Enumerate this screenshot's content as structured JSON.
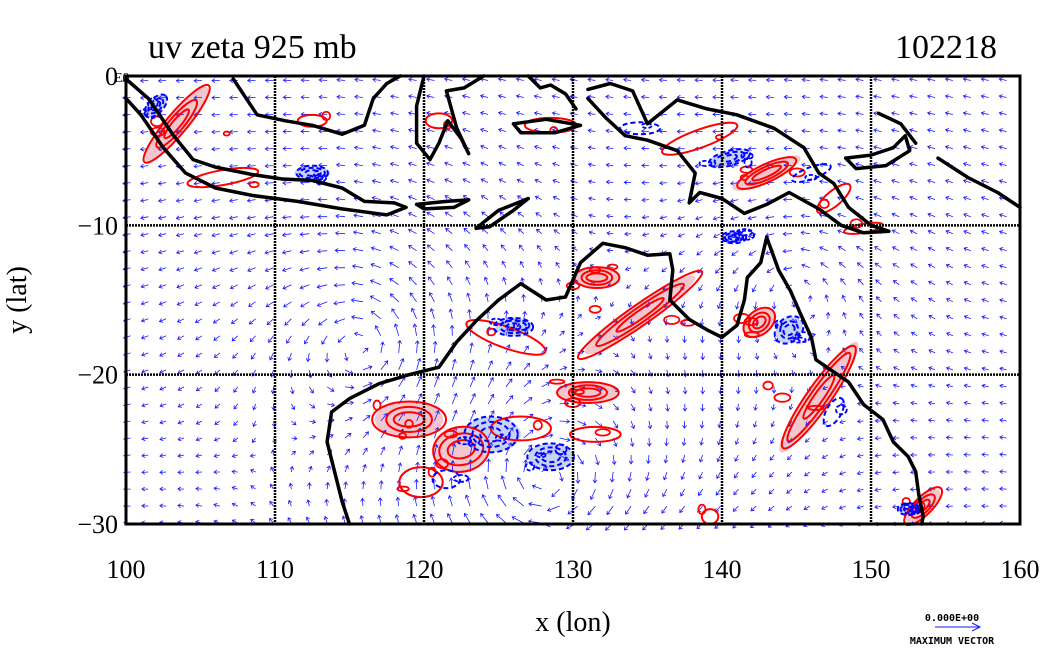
{
  "chart_data": {
    "type": "vector-contour-map",
    "title_left": "uv zeta 925 mb",
    "title_right": "102218",
    "xlabel": "x (lon)",
    "ylabel": "y (lat)",
    "xlim": [
      100,
      160
    ],
    "ylim": [
      -30,
      0
    ],
    "x_ticks": [
      100,
      110,
      120,
      130,
      140,
      150,
      160
    ],
    "y_ticks": [
      0,
      -10,
      -20,
      -30
    ],
    "x_tick_labels": [
      "100",
      "110",
      "120",
      "130",
      "140",
      "150",
      "160"
    ],
    "y_tick_labels": [
      "0",
      "−10",
      "−20",
      "−30"
    ],
    "corner_label": "E0",
    "grid": true,
    "vector_reference": {
      "value_label": "0.000E+00",
      "caption": "MAXIMUM VECTOR"
    },
    "colors": {
      "vectors": "#1a1aff",
      "positive_vorticity": "#ff0000",
      "positive_fill": "#f2c6cf",
      "negative_vorticity": "#0000ff",
      "negative_fill": "#c7d3f5",
      "coastline": "#000000",
      "grid": "#000000"
    },
    "coastlines": [
      {
        "name": "sumatra-java",
        "points": [
          [
            100.0,
            -0.2
          ],
          [
            101.5,
            -1.5
          ],
          [
            103.2,
            -4.0
          ],
          [
            104.5,
            -5.6
          ],
          [
            106.0,
            -6.1
          ],
          [
            108.5,
            -6.6
          ],
          [
            110.5,
            -6.9
          ],
          [
            112.5,
            -7.0
          ],
          [
            114.5,
            -7.5
          ],
          [
            116.0,
            -8.4
          ],
          [
            118.0,
            -8.5
          ],
          [
            118.8,
            -8.8
          ],
          [
            117.5,
            -9.3
          ],
          [
            114.5,
            -8.9
          ],
          [
            111.5,
            -8.4
          ],
          [
            108.5,
            -8.0
          ],
          [
            106.0,
            -7.5
          ],
          [
            104.0,
            -6.5
          ],
          [
            102.5,
            -4.8
          ],
          [
            101.0,
            -2.6
          ],
          [
            100.0,
            -1.5
          ]
        ]
      },
      {
        "name": "borneo",
        "points": [
          [
            107.2,
            -0.2
          ],
          [
            108.8,
            -2.6
          ],
          [
            110.7,
            -3.0
          ],
          [
            112.5,
            -3.3
          ],
          [
            114.5,
            -3.9
          ],
          [
            116.0,
            -3.3
          ],
          [
            116.6,
            -1.5
          ],
          [
            117.5,
            -0.5
          ],
          [
            118.4,
            0.0
          ]
        ]
      },
      {
        "name": "sulawesi",
        "points": [
          [
            120.0,
            0.0
          ],
          [
            119.5,
            -2.0
          ],
          [
            119.5,
            -4.5
          ],
          [
            120.4,
            -5.6
          ],
          [
            121.0,
            -4.5
          ],
          [
            121.6,
            -3.0
          ],
          [
            122.5,
            -4.2
          ],
          [
            123.0,
            -5.2
          ],
          [
            122.2,
            -3.5
          ],
          [
            121.5,
            -1.0
          ],
          [
            122.7,
            -0.8
          ],
          [
            124.0,
            0.0
          ]
        ]
      },
      {
        "name": "halmahera",
        "points": [
          [
            127.0,
            0.0
          ],
          [
            127.8,
            -0.8
          ],
          [
            128.5,
            -0.6
          ],
          [
            129.5,
            -1.2
          ],
          [
            130.2,
            -2.2
          ]
        ]
      },
      {
        "name": "seram",
        "points": [
          [
            126.0,
            -3.2
          ],
          [
            128.2,
            -2.9
          ],
          [
            130.5,
            -3.3
          ],
          [
            128.8,
            -3.8
          ],
          [
            126.5,
            -3.8
          ],
          [
            126.0,
            -3.2
          ]
        ]
      },
      {
        "name": "timor",
        "points": [
          [
            123.5,
            -10.2
          ],
          [
            125.0,
            -9.0
          ],
          [
            127.0,
            -8.2
          ],
          [
            126.0,
            -9.0
          ],
          [
            124.4,
            -10.1
          ],
          [
            123.5,
            -10.2
          ]
        ]
      },
      {
        "name": "flores-islands",
        "points": [
          [
            119.5,
            -8.6
          ],
          [
            121.5,
            -8.4
          ],
          [
            123.0,
            -8.3
          ],
          [
            122.0,
            -8.8
          ],
          [
            120.0,
            -8.9
          ],
          [
            119.5,
            -8.6
          ]
        ]
      },
      {
        "name": "new-guinea",
        "points": [
          [
            131.0,
            -0.9
          ],
          [
            132.5,
            -0.5
          ],
          [
            134.0,
            -1.0
          ],
          [
            135.0,
            -3.2
          ],
          [
            137.0,
            -1.6
          ],
          [
            139.0,
            -2.2
          ],
          [
            141.0,
            -2.6
          ],
          [
            143.5,
            -3.5
          ],
          [
            145.5,
            -4.8
          ],
          [
            146.5,
            -6.5
          ],
          [
            147.5,
            -7.2
          ],
          [
            148.5,
            -8.8
          ],
          [
            150.0,
            -10.0
          ],
          [
            151.2,
            -10.4
          ],
          [
            149.5,
            -10.5
          ],
          [
            148.0,
            -10.0
          ],
          [
            146.5,
            -8.9
          ],
          [
            144.5,
            -7.8
          ],
          [
            143.0,
            -8.6
          ],
          [
            141.5,
            -9.2
          ],
          [
            140.0,
            -8.2
          ],
          [
            138.5,
            -7.8
          ],
          [
            137.8,
            -8.5
          ],
          [
            138.2,
            -6.5
          ],
          [
            137.0,
            -5.0
          ],
          [
            135.0,
            -4.3
          ],
          [
            133.5,
            -4.0
          ],
          [
            132.2,
            -2.8
          ],
          [
            131.0,
            -1.5
          ]
        ]
      },
      {
        "name": "new-britain",
        "points": [
          [
            148.3,
            -5.5
          ],
          [
            150.0,
            -5.3
          ],
          [
            151.5,
            -4.8
          ],
          [
            152.3,
            -4.0
          ],
          [
            152.6,
            -5.0
          ],
          [
            151.0,
            -6.0
          ],
          [
            149.0,
            -6.2
          ],
          [
            148.3,
            -5.5
          ]
        ]
      },
      {
        "name": "new-ireland",
        "points": [
          [
            150.5,
            -2.5
          ],
          [
            152.0,
            -3.2
          ],
          [
            153.0,
            -4.5
          ]
        ]
      },
      {
        "name": "solomons",
        "points": [
          [
            154.5,
            -5.5
          ],
          [
            156.5,
            -6.8
          ],
          [
            158.5,
            -7.8
          ],
          [
            160.0,
            -8.8
          ]
        ]
      },
      {
        "name": "australia",
        "points": [
          [
            143.0,
            -10.8
          ],
          [
            142.6,
            -12.5
          ],
          [
            141.7,
            -13.5
          ],
          [
            141.5,
            -15.0
          ],
          [
            141.0,
            -16.7
          ],
          [
            140.0,
            -17.5
          ],
          [
            139.0,
            -17.0
          ],
          [
            137.8,
            -16.3
          ],
          [
            136.5,
            -15.0
          ],
          [
            136.7,
            -13.0
          ],
          [
            136.5,
            -11.9
          ],
          [
            135.0,
            -12.0
          ],
          [
            133.5,
            -11.5
          ],
          [
            132.0,
            -11.2
          ],
          [
            130.5,
            -12.5
          ],
          [
            129.5,
            -14.8
          ],
          [
            128.2,
            -15.0
          ],
          [
            126.5,
            -13.9
          ],
          [
            125.0,
            -15.0
          ],
          [
            123.5,
            -16.4
          ],
          [
            122.2,
            -17.8
          ],
          [
            121.0,
            -19.5
          ],
          [
            119.0,
            -20.0
          ],
          [
            117.0,
            -20.6
          ],
          [
            115.0,
            -21.6
          ],
          [
            113.8,
            -22.5
          ],
          [
            113.5,
            -24.5
          ],
          [
            114.0,
            -26.5
          ],
          [
            114.5,
            -28.5
          ],
          [
            115.0,
            -30.0
          ]
        ]
      },
      {
        "name": "queensland-east",
        "points": [
          [
            143.0,
            -10.8
          ],
          [
            143.8,
            -13.0
          ],
          [
            144.6,
            -14.4
          ],
          [
            145.3,
            -16.0
          ],
          [
            146.0,
            -17.5
          ],
          [
            146.3,
            -19.0
          ],
          [
            148.5,
            -20.5
          ],
          [
            149.5,
            -22.0
          ],
          [
            150.8,
            -23.0
          ],
          [
            151.5,
            -24.5
          ],
          [
            152.5,
            -25.5
          ],
          [
            153.0,
            -26.5
          ],
          [
            153.2,
            -28.0
          ],
          [
            153.5,
            -29.5
          ],
          [
            153.4,
            -30.0
          ]
        ]
      }
    ],
    "positive_regions": [
      {
        "name": "sumatra-coast",
        "cx": 103.4,
        "cy": -3.2,
        "rx": 3.2,
        "ry": 0.7,
        "rot": 50,
        "filled": true
      },
      {
        "name": "java-south",
        "cx": 106.5,
        "cy": -6.8,
        "rx": 2.5,
        "ry": 0.5,
        "rot": 10,
        "filled": false
      },
      {
        "name": "borneo-north",
        "cx": 112.5,
        "cy": -3.0,
        "rx": 1.0,
        "ry": 0.4,
        "rot": 0,
        "filled": false
      },
      {
        "name": "sulawesi-rim",
        "cx": 121.0,
        "cy": -3.0,
        "rx": 0.8,
        "ry": 0.5,
        "rot": 0,
        "filled": false
      },
      {
        "name": "seram-rim",
        "cx": 128.5,
        "cy": -3.3,
        "rx": 2.0,
        "ry": 0.5,
        "rot": 0,
        "filled": false
      },
      {
        "name": "png-highlands-a",
        "cx": 138.5,
        "cy": -4.2,
        "rx": 3.0,
        "ry": 0.6,
        "rot": 20,
        "filled": false
      },
      {
        "name": "png-highlands-b",
        "cx": 143.0,
        "cy": -6.5,
        "rx": 2.5,
        "ry": 0.6,
        "rot": 25,
        "filled": true
      },
      {
        "name": "png-east",
        "cx": 147.5,
        "cy": -8.2,
        "rx": 1.5,
        "ry": 0.5,
        "rot": 40,
        "filled": false
      },
      {
        "name": "png-tail",
        "cx": 149.5,
        "cy": -10.2,
        "rx": 1.2,
        "ry": 0.3,
        "rot": 10,
        "filled": false
      },
      {
        "name": "arnhem-coast",
        "cx": 131.6,
        "cy": -13.5,
        "rx": 1.6,
        "ry": 0.7,
        "rot": 0,
        "filled": true
      },
      {
        "name": "kimberley-band",
        "cx": 134.5,
        "cy": -16.0,
        "rx": 4.5,
        "ry": 0.7,
        "rot": 35,
        "filled": true
      },
      {
        "name": "kimberley-coast",
        "cx": 125.5,
        "cy": -17.5,
        "rx": 2.5,
        "ry": 0.7,
        "rot": -20,
        "filled": false
      },
      {
        "name": "pilbara-a",
        "cx": 119.0,
        "cy": -23.0,
        "rx": 2.3,
        "ry": 1.2,
        "rot": 0,
        "filled": true
      },
      {
        "name": "pilbara-b",
        "cx": 122.5,
        "cy": -25.0,
        "rx": 2.0,
        "ry": 1.5,
        "rot": 10,
        "filled": true
      },
      {
        "name": "pilbara-c",
        "cx": 119.8,
        "cy": -27.2,
        "rx": 1.5,
        "ry": 1.0,
        "rot": 0,
        "filled": false
      },
      {
        "name": "interior-a",
        "cx": 126.5,
        "cy": -23.6,
        "rx": 1.8,
        "ry": 0.8,
        "rot": 0,
        "filled": false
      },
      {
        "name": "interior-b",
        "cx": 131.0,
        "cy": -21.2,
        "rx": 2.0,
        "ry": 0.7,
        "rot": 0,
        "filled": true
      },
      {
        "name": "interior-c",
        "cx": 131.5,
        "cy": -24.0,
        "rx": 1.5,
        "ry": 0.5,
        "rot": 0,
        "filled": false
      },
      {
        "name": "queensland-band",
        "cx": 146.5,
        "cy": -21.5,
        "rx": 4.5,
        "ry": 0.8,
        "rot": 55,
        "filled": true
      },
      {
        "name": "queensland-north",
        "cx": 142.5,
        "cy": -16.5,
        "rx": 1.2,
        "ry": 0.8,
        "rot": 40,
        "filled": true
      },
      {
        "name": "nsw-coast",
        "cx": 153.5,
        "cy": -28.8,
        "rx": 1.5,
        "ry": 0.6,
        "rot": 45,
        "filled": true
      },
      {
        "name": "sw-corner",
        "cx": 139.2,
        "cy": -29.5,
        "rx": 0.6,
        "ry": 0.5,
        "rot": 0,
        "filled": false
      }
    ],
    "negative_regions": [
      {
        "name": "sumatra-inland",
        "cx": 102.0,
        "cy": -2.0,
        "rx": 1.0,
        "ry": 0.5,
        "rot": 45,
        "filled": true
      },
      {
        "name": "java-north",
        "cx": 112.5,
        "cy": -6.5,
        "rx": 1.2,
        "ry": 0.5,
        "rot": 0,
        "filled": true
      },
      {
        "name": "png-blue-a",
        "cx": 134.5,
        "cy": -3.5,
        "rx": 1.2,
        "ry": 0.4,
        "rot": 0,
        "filled": false
      },
      {
        "name": "png-blue-b",
        "cx": 140.5,
        "cy": -5.5,
        "rx": 1.5,
        "ry": 0.5,
        "rot": 15,
        "filled": true
      },
      {
        "name": "png-blue-c",
        "cx": 146.0,
        "cy": -6.5,
        "rx": 1.2,
        "ry": 0.4,
        "rot": 20,
        "filled": false
      },
      {
        "name": "arafura",
        "cx": 140.8,
        "cy": -10.8,
        "rx": 0.8,
        "ry": 0.4,
        "rot": 0,
        "filled": true
      },
      {
        "name": "kimberley-blue",
        "cx": 126.0,
        "cy": -16.8,
        "rx": 1.2,
        "ry": 0.6,
        "rot": 0,
        "filled": true
      },
      {
        "name": "interior-blue-a",
        "cx": 124.5,
        "cy": -24.0,
        "rx": 2.0,
        "ry": 1.2,
        "rot": 0,
        "filled": true
      },
      {
        "name": "interior-blue-b",
        "cx": 128.5,
        "cy": -25.5,
        "rx": 1.5,
        "ry": 0.9,
        "rot": 0,
        "filled": true
      },
      {
        "name": "interior-blue-c",
        "cx": 121.5,
        "cy": -27.0,
        "rx": 1.0,
        "ry": 0.6,
        "rot": 0,
        "filled": false
      },
      {
        "name": "queensland-blue",
        "cx": 144.5,
        "cy": -17.0,
        "rx": 1.0,
        "ry": 0.8,
        "rot": 40,
        "filled": true
      },
      {
        "name": "queensland-blue-b",
        "cx": 147.5,
        "cy": -22.5,
        "rx": 1.0,
        "ry": 0.5,
        "rot": 60,
        "filled": false
      },
      {
        "name": "nsw-blue",
        "cx": 152.5,
        "cy": -29.0,
        "rx": 0.7,
        "ry": 0.4,
        "rot": 0,
        "filled": true
      }
    ]
  }
}
